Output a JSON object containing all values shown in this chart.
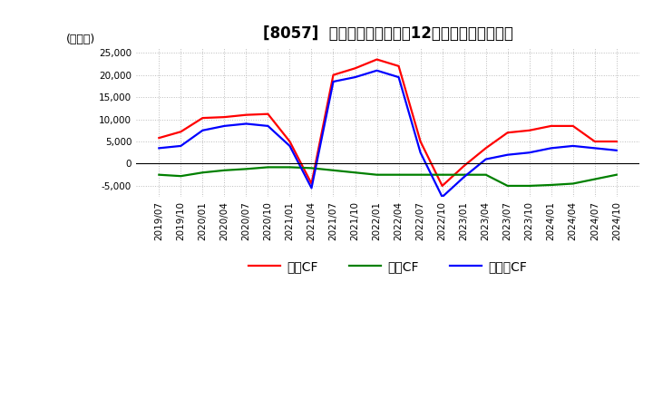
{
  "title": "[8057]  キャッシュフローの12か月移動合計の推移",
  "ylabel": "(百万円)",
  "ylim": [
    -7500,
    26000
  ],
  "yticks": [
    -5000,
    0,
    5000,
    10000,
    15000,
    20000,
    25000
  ],
  "x_labels": [
    "2019/07",
    "2019/10",
    "2020/01",
    "2020/04",
    "2020/07",
    "2020/10",
    "2021/01",
    "2021/04",
    "2021/07",
    "2021/10",
    "2022/01",
    "2022/04",
    "2022/07",
    "2022/10",
    "2023/01",
    "2023/04",
    "2023/07",
    "2023/10",
    "2024/01",
    "2024/04",
    "2024/07",
    "2024/10"
  ],
  "operating_cf": [
    5800,
    7200,
    10300,
    10500,
    11000,
    11200,
    5000,
    -4500,
    20000,
    21500,
    23500,
    22000,
    5000,
    -5000,
    -500,
    3500,
    7000,
    7500,
    8500,
    8500,
    5000,
    5000
  ],
  "investing_cf": [
    -2500,
    -2800,
    -2000,
    -1500,
    -1200,
    -800,
    -800,
    -1000,
    -1500,
    -2000,
    -2500,
    -2500,
    -2500,
    -2500,
    -2500,
    -2500,
    -5000,
    -5000,
    -4800,
    -4500,
    -3500,
    -2500
  ],
  "free_cf": [
    3500,
    4000,
    7500,
    8500,
    9000,
    8500,
    4000,
    -5500,
    18500,
    19500,
    21000,
    19500,
    2500,
    -7500,
    -3000,
    1000,
    2000,
    2500,
    3500,
    4000,
    3500,
    3000
  ],
  "line_colors": {
    "operating": "#ff0000",
    "investing": "#008000",
    "free": "#0000ff"
  },
  "legend_labels": [
    "営業CF",
    "投資CF",
    "フリーCF"
  ],
  "background_color": "#ffffff",
  "grid_color": "#bbbbbb",
  "title_fontsize": 12,
  "label_fontsize": 9,
  "tick_fontsize": 7.5
}
